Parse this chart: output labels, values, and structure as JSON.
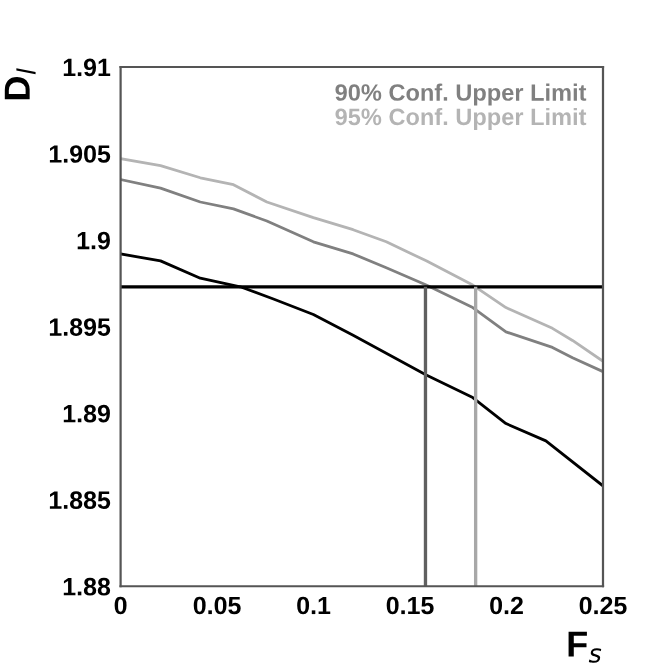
{
  "chart_data": {
    "type": "line",
    "xlabel": "F$_{s}$",
    "ylabel": "D$_{l}$",
    "xlim": [
      0,
      0.25
    ],
    "ylim": [
      1.88,
      1.91
    ],
    "xticks": [
      0,
      0.05,
      0.1,
      0.15,
      0.2,
      0.25
    ],
    "yticks": [
      1.88,
      1.885,
      1.89,
      1.895,
      1.9,
      1.905,
      1.91
    ],
    "series": [
      {
        "name": "90% Conf. Upper Limit",
        "color": "#808080",
        "x": [
          0,
          0.0207,
          0.0413,
          0.0585,
          0.0758,
          0.0999,
          0.1205,
          0.1377,
          0.1584,
          0.1825,
          0.1997,
          0.2238,
          0.2342,
          0.25
        ],
        "values": [
          1.9035,
          1.903,
          1.9022,
          1.9018,
          1.9011,
          1.8999,
          1.8992,
          1.8984,
          1.8974,
          1.8961,
          1.8947,
          1.8938,
          1.8932,
          1.8924
        ]
      },
      {
        "name": "95% Conf. Upper Limit",
        "color": "#b4b4b4",
        "x": [
          0,
          0.0207,
          0.0413,
          0.0585,
          0.0758,
          0.0999,
          0.1205,
          0.1377,
          0.1584,
          0.1825,
          0.1997,
          0.2238,
          0.2342,
          0.25
        ],
        "values": [
          1.9047,
          1.9043,
          1.9036,
          1.9032,
          1.9022,
          1.9013,
          1.9006,
          1.8999,
          1.8988,
          1.8974,
          1.8961,
          1.8949,
          1.8942,
          1.893
        ]
      },
      {
        "color": "#000000",
        "x": [
          0,
          0.0207,
          0.0413,
          0.062,
          0.0792,
          0.0999,
          0.1205,
          0.1584,
          0.1825,
          0.1997,
          0.2204,
          0.25
        ],
        "values": [
          1.8992,
          1.8988,
          1.8978,
          1.8973,
          1.8966,
          1.8957,
          1.8945,
          1.8922,
          1.8909,
          1.8894,
          1.8884,
          1.8858
        ]
      }
    ],
    "ref_lines": [
      {
        "axis": "y",
        "value": 1.8973,
        "color": "#000000"
      },
      {
        "axis": "x",
        "value": 0.158,
        "color": "#606060"
      },
      {
        "axis": "x",
        "value": 0.184,
        "color": "#a8a8a8"
      }
    ],
    "legend": "top right",
    "grid": false,
    "marker": "none",
    "line_style": "solid"
  }
}
